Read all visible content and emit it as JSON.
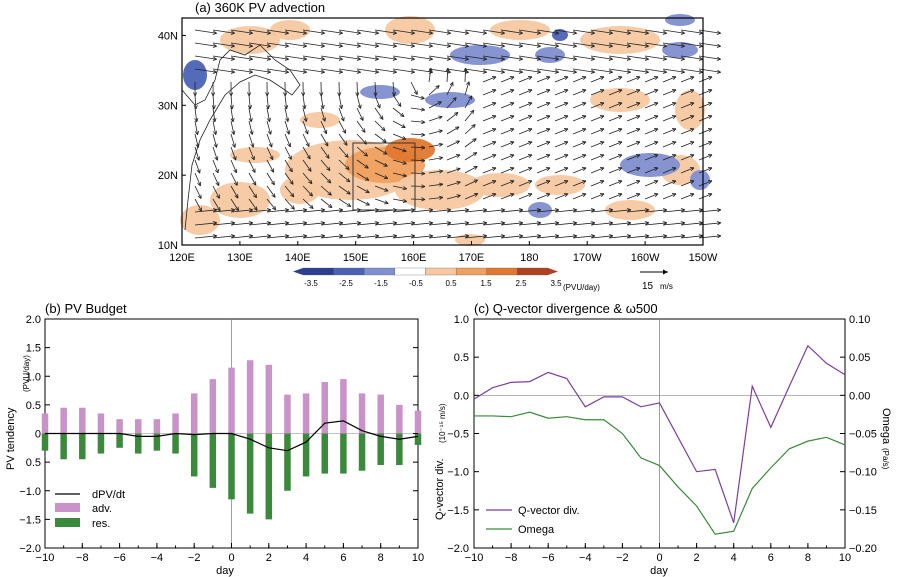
{
  "panel_a": {
    "title": "(a) 360K PV advection",
    "lon_ticks": [
      "120E",
      "130E",
      "140E",
      "150E",
      "160E",
      "170E",
      "180",
      "170W",
      "160W",
      "150W"
    ],
    "lat_ticks": [
      "10N",
      "20N",
      "30N",
      "40N"
    ],
    "colorbar": {
      "levels": [
        "-3.5",
        "-2.5",
        "-1.5",
        "-0.5",
        "0.5",
        "1.5",
        "2.5",
        "3.5"
      ],
      "unit": "(PVU/day)",
      "colors": [
        "#2a3f8f",
        "#4b63b5",
        "#7f8fd0",
        "#ffffff",
        "#f7c8a0",
        "#f0a060",
        "#e07830",
        "#b04020"
      ]
    },
    "vector_ref": {
      "value": "15",
      "unit": "m/s"
    }
  },
  "chart_data": [
    {
      "type": "bar",
      "title": "(b) PV Budget",
      "xlabel": "day",
      "ylabel": "PV tendency",
      "ylabel_unit": "(PVU/day)",
      "xlim": [
        -10,
        10
      ],
      "ylim": [
        -2.0,
        2.0
      ],
      "x_ticks": [
        "−10",
        "−8",
        "−6",
        "−4",
        "−2",
        "0",
        "2",
        "4",
        "6",
        "8",
        "10"
      ],
      "y_ticks": [
        "2.0",
        "1.5",
        "1.0",
        "0.5",
        "0",
        "0.5",
        "−1.0",
        "−1.5",
        "−2.0"
      ],
      "x": [
        -10,
        -9,
        -8,
        -7,
        -6,
        -5,
        -4,
        -3,
        -2,
        -1,
        0,
        1,
        2,
        3,
        4,
        5,
        6,
        7,
        8,
        9,
        10
      ],
      "series": [
        {
          "name": "adv.",
          "color": "#c992c8",
          "values": [
            0.35,
            0.45,
            0.45,
            0.35,
            0.25,
            0.25,
            0.25,
            0.35,
            0.7,
            0.95,
            1.15,
            1.28,
            1.2,
            0.68,
            0.7,
            0.9,
            0.95,
            0.7,
            0.68,
            0.5,
            0.4
          ]
        },
        {
          "name": "res.",
          "color": "#3b8a3b",
          "values": [
            -0.3,
            -0.45,
            -0.45,
            -0.35,
            -0.25,
            -0.35,
            -0.3,
            -0.35,
            -0.75,
            -0.95,
            -1.15,
            -1.4,
            -1.5,
            -1.0,
            -0.75,
            -0.7,
            -0.7,
            -0.65,
            -0.55,
            -0.55,
            -0.2
          ]
        },
        {
          "name": "dPV/dt",
          "color": "#000000",
          "values": [
            0.0,
            0.0,
            0.0,
            0.0,
            0.0,
            -0.05,
            -0.05,
            0.0,
            -0.02,
            0.0,
            0.0,
            -0.1,
            -0.25,
            -0.3,
            -0.15,
            0.18,
            0.22,
            0.05,
            -0.05,
            -0.1,
            -0.05
          ]
        }
      ],
      "legend": {
        "placement": "bottom-left",
        "entries": [
          "dPV/dt",
          "adv.",
          "res."
        ]
      }
    },
    {
      "type": "line",
      "title": "(c) Q-vector divergence & ω500",
      "xlabel": "day",
      "ylabel_left": "Q-vector div.",
      "ylabel_left_unit": "(10⁻¹⁵ m/s)",
      "ylabel_right": "Omega",
      "ylabel_right_unit": "(Pa/s)",
      "xlim": [
        -10,
        10
      ],
      "ylim_left": [
        -2.0,
        1.0
      ],
      "ylim_right": [
        -0.2,
        0.1
      ],
      "x_ticks": [
        "−10",
        "−8",
        "−6",
        "−4",
        "−2",
        "0",
        "2",
        "4",
        "6",
        "8",
        "10"
      ],
      "y_ticks_left": [
        "1.0",
        "0.5",
        "0.0",
        "−0.5",
        "−1.0",
        "−1.5",
        "−2.0"
      ],
      "y_ticks_right": [
        "0.10",
        "0.05",
        "0.00",
        "−0.05",
        "−0.10",
        "−0.15",
        "−0.20"
      ],
      "x": [
        -10,
        -9,
        -8,
        -7,
        -6,
        -5,
        -4,
        -3,
        -2,
        -1,
        0,
        1,
        2,
        3,
        4,
        5,
        6,
        7,
        8,
        9,
        10
      ],
      "series": [
        {
          "name": "Q-vector div.",
          "color": "#7b3f9e",
          "axis": "left",
          "values": [
            -0.05,
            0.1,
            0.17,
            0.18,
            0.3,
            0.22,
            -0.15,
            -0.02,
            -0.02,
            -0.15,
            -0.1,
            -0.55,
            -1.0,
            -0.97,
            -1.67,
            0.12,
            -0.42,
            0.12,
            0.65,
            0.42,
            0.27
          ]
        },
        {
          "name": "Omega",
          "color": "#3a8a3a",
          "axis": "right",
          "values": [
            -0.027,
            -0.027,
            -0.028,
            -0.022,
            -0.03,
            -0.028,
            -0.032,
            -0.032,
            -0.05,
            -0.082,
            -0.092,
            -0.12,
            -0.145,
            -0.182,
            -0.178,
            -0.122,
            -0.095,
            -0.07,
            -0.06,
            -0.055,
            -0.065
          ]
        }
      ],
      "legend": {
        "placement": "bottom-left",
        "entries": [
          "Q-vector div.",
          "Omega"
        ]
      }
    }
  ]
}
